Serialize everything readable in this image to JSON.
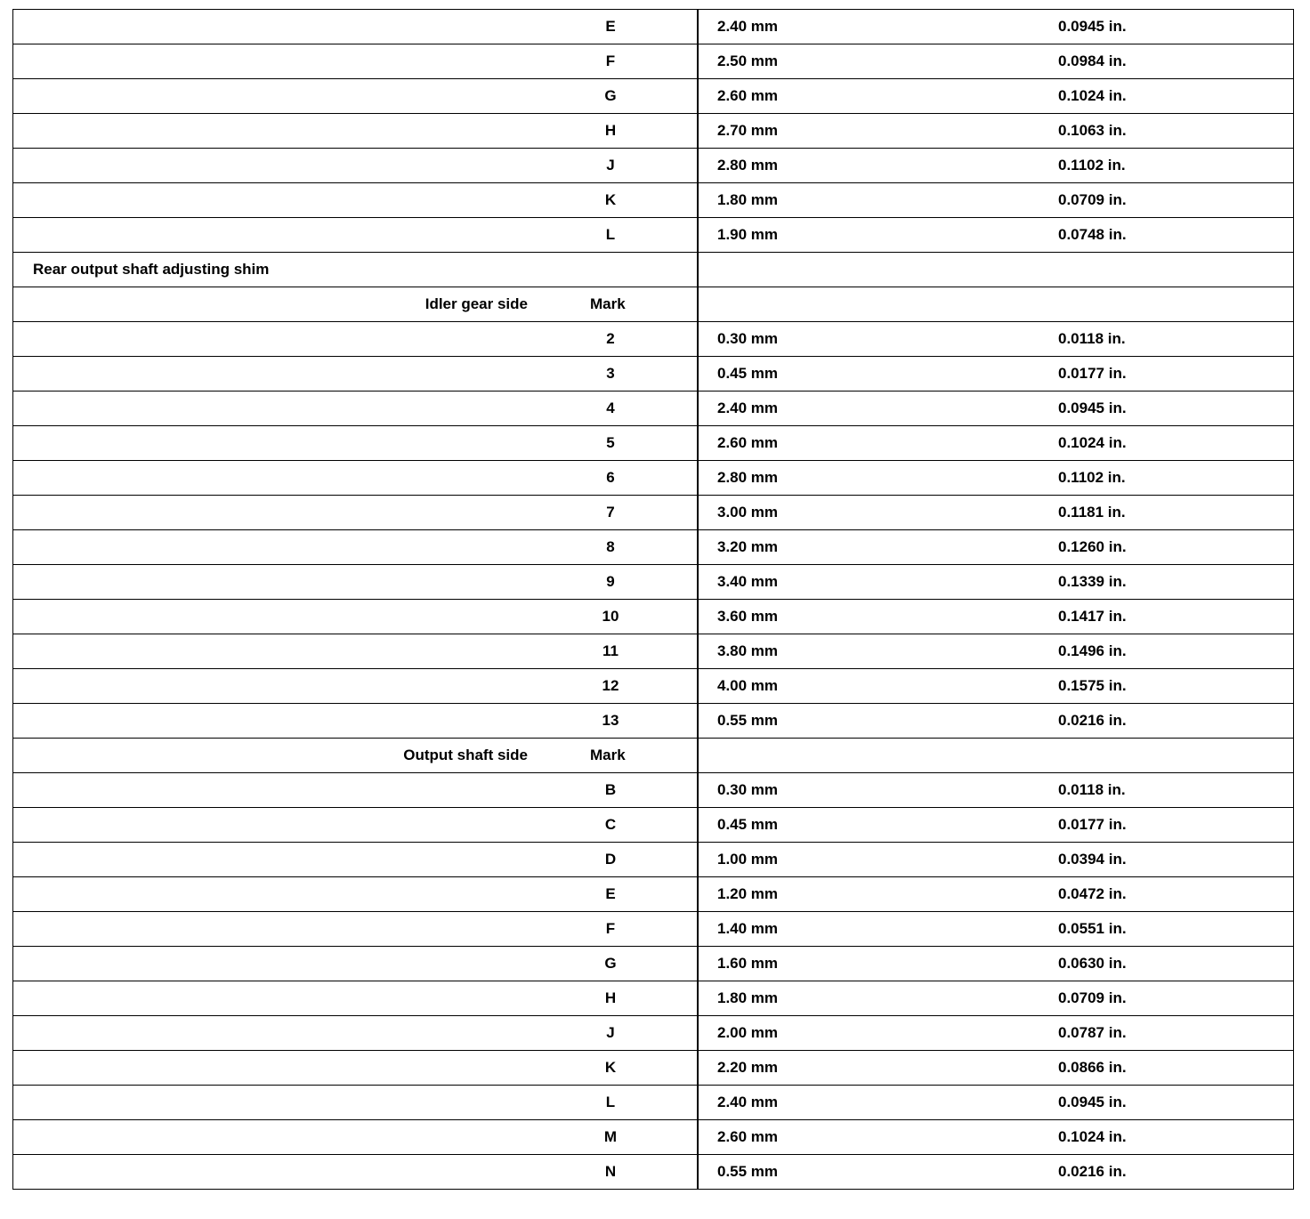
{
  "section_title": "Rear output shaft adjusting shim",
  "groups": [
    {
      "subheading": null,
      "rows": [
        {
          "mark": "E",
          "mm": "2.40 mm",
          "in": "0.0945 in."
        },
        {
          "mark": "F",
          "mm": "2.50 mm",
          "in": "0.0984 in."
        },
        {
          "mark": "G",
          "mm": "2.60 mm",
          "in": "0.1024 in."
        },
        {
          "mark": "H",
          "mm": "2.70 mm",
          "in": "0.1063 in."
        },
        {
          "mark": "J",
          "mm": "2.80 mm",
          "in": "0.1102 in."
        },
        {
          "mark": "K",
          "mm": "1.80 mm",
          "in": "0.0709 in."
        },
        {
          "mark": "L",
          "mm": "1.90 mm",
          "in": "0.0748 in."
        }
      ]
    },
    {
      "subheading": "Idler gear side",
      "mark_label": "Mark",
      "rows": [
        {
          "mark": "2",
          "mm": "0.30 mm",
          "in": "0.0118 in."
        },
        {
          "mark": "3",
          "mm": "0.45 mm",
          "in": "0.0177 in."
        },
        {
          "mark": "4",
          "mm": "2.40 mm",
          "in": "0.0945 in."
        },
        {
          "mark": "5",
          "mm": "2.60 mm",
          "in": "0.1024 in."
        },
        {
          "mark": "6",
          "mm": "2.80 mm",
          "in": "0.1102 in."
        },
        {
          "mark": "7",
          "mm": "3.00 mm",
          "in": "0.1181 in."
        },
        {
          "mark": "8",
          "mm": "3.20 mm",
          "in": "0.1260 in."
        },
        {
          "mark": "9",
          "mm": "3.40 mm",
          "in": "0.1339 in."
        },
        {
          "mark": "10",
          "mm": "3.60 mm",
          "in": "0.1417 in."
        },
        {
          "mark": "11",
          "mm": "3.80 mm",
          "in": "0.1496 in."
        },
        {
          "mark": "12",
          "mm": "4.00 mm",
          "in": "0.1575 in."
        },
        {
          "mark": "13",
          "mm": "0.55 mm",
          "in": "0.0216 in."
        }
      ]
    },
    {
      "subheading": "Output shaft side",
      "mark_label": "Mark",
      "rows": [
        {
          "mark": "B",
          "mm": "0.30 mm",
          "in": "0.0118 in."
        },
        {
          "mark": "C",
          "mm": "0.45 mm",
          "in": "0.0177 in."
        },
        {
          "mark": "D",
          "mm": "1.00 mm",
          "in": "0.0394 in."
        },
        {
          "mark": "E",
          "mm": "1.20 mm",
          "in": "0.0472 in."
        },
        {
          "mark": "F",
          "mm": "1.40 mm",
          "in": "0.0551 in."
        },
        {
          "mark": "G",
          "mm": "1.60 mm",
          "in": "0.0630 in."
        },
        {
          "mark": "H",
          "mm": "1.80 mm",
          "in": "0.0709 in."
        },
        {
          "mark": "J",
          "mm": "2.00 mm",
          "in": "0.0787 in."
        },
        {
          "mark": "K",
          "mm": "2.20 mm",
          "in": "0.0866 in."
        },
        {
          "mark": "L",
          "mm": "2.40 mm",
          "in": "0.0945 in."
        },
        {
          "mark": "M",
          "mm": "2.60 mm",
          "in": "0.1024 in."
        },
        {
          "mark": "N",
          "mm": "0.55 mm",
          "in": "0.0216 in."
        }
      ]
    }
  ]
}
